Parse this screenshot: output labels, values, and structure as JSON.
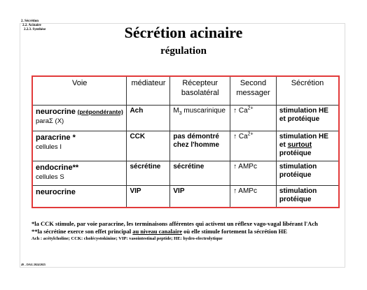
{
  "breadcrumb": {
    "l1": "2. Sécrétion",
    "l2": "2.2. Acinaire",
    "l3": "2.2.3. Synthèse"
  },
  "title": "Sécrétion acinaire",
  "subtitle": "régulation",
  "table": {
    "headers": {
      "voie": "Voie",
      "mediateur": "médiateur",
      "recepteur_l1": "Récepteur",
      "recepteur_l2": "basolatéral",
      "second_l1": "Second",
      "second_l2": "messager",
      "secretion": "Sécrétion"
    },
    "rows": [
      {
        "voie": "neurocrine",
        "voie_note": "(prépondérante)",
        "voie_sub": "paraΣ (X)",
        "mediateur": "Ach",
        "recepteur_m": "M",
        "recepteur_m_sub": "3",
        "recepteur_rest": " muscarinique",
        "messager_arrow": "↑",
        "messager": " Ca",
        "messager_sup": "2+",
        "secretion_l1": "stimulation HE",
        "secretion_l2": "et protéique"
      },
      {
        "voie": "paracrine",
        "voie_star": " *",
        "voie_sub": "cellules I",
        "mediateur": "CCK",
        "recepteur_l1": "pas démontré",
        "recepteur_l2": "chez l'homme",
        "messager_arrow": "↑",
        "messager": " Ca",
        "messager_sup": "2+",
        "secretion_l1": "stimulation HE",
        "secretion_l2_pre": "et ",
        "secretion_l2_u": "surtout",
        "secretion_l3": "protéique"
      },
      {
        "voie": "endocrine",
        "voie_star": "**",
        "voie_sub": "cellules S",
        "mediateur": "sécrétine",
        "recepteur": "sécrétine",
        "messager_arrow": "↑",
        "messager": " AMPc",
        "secretion_l1": "stimulation",
        "secretion_l2": "protéique"
      },
      {
        "voie": "neurocrine",
        "mediateur": "VIP",
        "recepteur": "VIP",
        "messager_arrow": "↑",
        "messager": " AMPc",
        "secretion_l1": "stimulation",
        "secretion_l2": "protéique"
      }
    ]
  },
  "notes": {
    "n1": "*la CCK stimule, par voie paracrine, les terminaisons afférentes qui activent un réflexe vago-vagal libérant l'Ach",
    "n2_pre": "**la sécrétine exerce son effet principal ",
    "n2_u": "au niveau canalaire",
    "n2_post": " où elle stimule fortement la sécrétion HE",
    "n3": "Ach : acétylcholine; CCK: cholécystokinine; VIP: vasointestinal peptide; HE: hydro-electrolytique"
  },
  "footer": "49 – DAG 2024/2025"
}
